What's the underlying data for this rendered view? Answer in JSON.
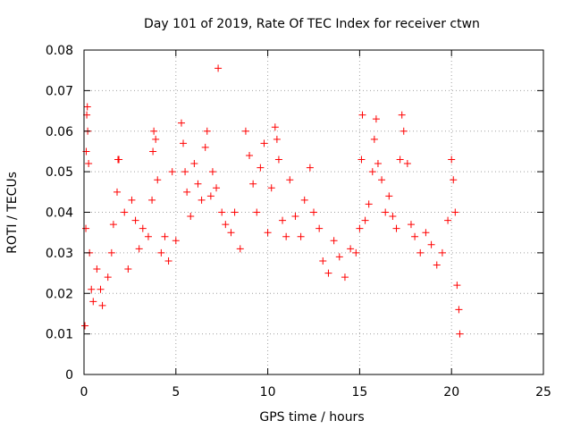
{
  "chart_data": {
    "type": "scatter",
    "title": "Day 101 of 2019, Rate Of TEC Index for receiver ctwn",
    "xlabel": "GPS time / hours",
    "ylabel": "ROTI / TECUs",
    "xlim": [
      0,
      25
    ],
    "ylim": [
      0,
      0.08
    ],
    "xticks": [
      0,
      5,
      10,
      15,
      20,
      25
    ],
    "yticks": [
      0,
      0.01,
      0.02,
      0.03,
      0.04,
      0.05,
      0.06,
      0.07,
      0.08
    ],
    "xtick_labels": [
      "0",
      "5",
      "10",
      "15",
      "20",
      "25"
    ],
    "ytick_labels": [
      "0",
      "0.01",
      "0.02",
      "0.03",
      "0.04",
      "0.05",
      "0.06",
      "0.07",
      "0.08"
    ],
    "grid": true,
    "marker": "+",
    "color": "#ff0000",
    "series": [
      {
        "values": [
          [
            0.05,
            0.012
          ],
          [
            0.1,
            0.036
          ],
          [
            0.12,
            0.055
          ],
          [
            0.15,
            0.064
          ],
          [
            0.18,
            0.066
          ],
          [
            0.2,
            0.06
          ],
          [
            0.25,
            0.052
          ],
          [
            0.3,
            0.03
          ],
          [
            0.4,
            0.021
          ],
          [
            0.5,
            0.018
          ],
          [
            0.7,
            0.026
          ],
          [
            0.9,
            0.021
          ],
          [
            1.0,
            0.017
          ],
          [
            1.3,
            0.024
          ],
          [
            1.5,
            0.03
          ],
          [
            1.6,
            0.037
          ],
          [
            1.8,
            0.045
          ],
          [
            1.85,
            0.053
          ],
          [
            1.9,
            0.053
          ],
          [
            2.2,
            0.04
          ],
          [
            2.4,
            0.026
          ],
          [
            2.6,
            0.043
          ],
          [
            2.8,
            0.038
          ],
          [
            3.0,
            0.031
          ],
          [
            3.2,
            0.036
          ],
          [
            3.5,
            0.034
          ],
          [
            3.7,
            0.043
          ],
          [
            3.75,
            0.055
          ],
          [
            3.8,
            0.06
          ],
          [
            3.9,
            0.058
          ],
          [
            4.0,
            0.048
          ],
          [
            4.2,
            0.03
          ],
          [
            4.4,
            0.034
          ],
          [
            4.6,
            0.028
          ],
          [
            4.8,
            0.05
          ],
          [
            5.0,
            0.033
          ],
          [
            5.3,
            0.062
          ],
          [
            5.4,
            0.057
          ],
          [
            5.5,
            0.05
          ],
          [
            5.6,
            0.045
          ],
          [
            5.8,
            0.039
          ],
          [
            6.0,
            0.052
          ],
          [
            6.2,
            0.047
          ],
          [
            6.4,
            0.043
          ],
          [
            6.6,
            0.056
          ],
          [
            6.7,
            0.06
          ],
          [
            6.9,
            0.044
          ],
          [
            7.0,
            0.05
          ],
          [
            7.2,
            0.046
          ],
          [
            7.3,
            0.0755
          ],
          [
            7.5,
            0.04
          ],
          [
            7.7,
            0.037
          ],
          [
            8.0,
            0.035
          ],
          [
            8.2,
            0.04
          ],
          [
            8.5,
            0.031
          ],
          [
            8.8,
            0.06
          ],
          [
            9.0,
            0.054
          ],
          [
            9.2,
            0.047
          ],
          [
            9.4,
            0.04
          ],
          [
            9.6,
            0.051
          ],
          [
            9.8,
            0.057
          ],
          [
            10.0,
            0.035
          ],
          [
            10.2,
            0.046
          ],
          [
            10.4,
            0.061
          ],
          [
            10.5,
            0.058
          ],
          [
            10.6,
            0.053
          ],
          [
            10.8,
            0.038
          ],
          [
            11.0,
            0.034
          ],
          [
            11.2,
            0.048
          ],
          [
            11.5,
            0.039
          ],
          [
            11.8,
            0.034
          ],
          [
            12.0,
            0.043
          ],
          [
            12.3,
            0.051
          ],
          [
            12.5,
            0.04
          ],
          [
            12.8,
            0.036
          ],
          [
            13.0,
            0.028
          ],
          [
            13.3,
            0.025
          ],
          [
            13.6,
            0.033
          ],
          [
            13.9,
            0.029
          ],
          [
            14.2,
            0.024
          ],
          [
            14.5,
            0.031
          ],
          [
            14.8,
            0.03
          ],
          [
            15.0,
            0.036
          ],
          [
            15.1,
            0.053
          ],
          [
            15.15,
            0.064
          ],
          [
            15.3,
            0.038
          ],
          [
            15.5,
            0.042
          ],
          [
            15.7,
            0.05
          ],
          [
            15.8,
            0.058
          ],
          [
            15.9,
            0.063
          ],
          [
            16.0,
            0.052
          ],
          [
            16.2,
            0.048
          ],
          [
            16.4,
            0.04
          ],
          [
            16.6,
            0.044
          ],
          [
            16.8,
            0.039
          ],
          [
            17.0,
            0.036
          ],
          [
            17.2,
            0.053
          ],
          [
            17.3,
            0.064
          ],
          [
            17.4,
            0.06
          ],
          [
            17.6,
            0.052
          ],
          [
            17.8,
            0.037
          ],
          [
            18.0,
            0.034
          ],
          [
            18.3,
            0.03
          ],
          [
            18.6,
            0.035
          ],
          [
            18.9,
            0.032
          ],
          [
            19.2,
            0.027
          ],
          [
            19.5,
            0.03
          ],
          [
            19.8,
            0.038
          ],
          [
            20.0,
            0.053
          ],
          [
            20.1,
            0.048
          ],
          [
            20.2,
            0.04
          ],
          [
            20.3,
            0.022
          ],
          [
            20.4,
            0.016
          ],
          [
            20.45,
            0.01
          ]
        ]
      }
    ]
  }
}
